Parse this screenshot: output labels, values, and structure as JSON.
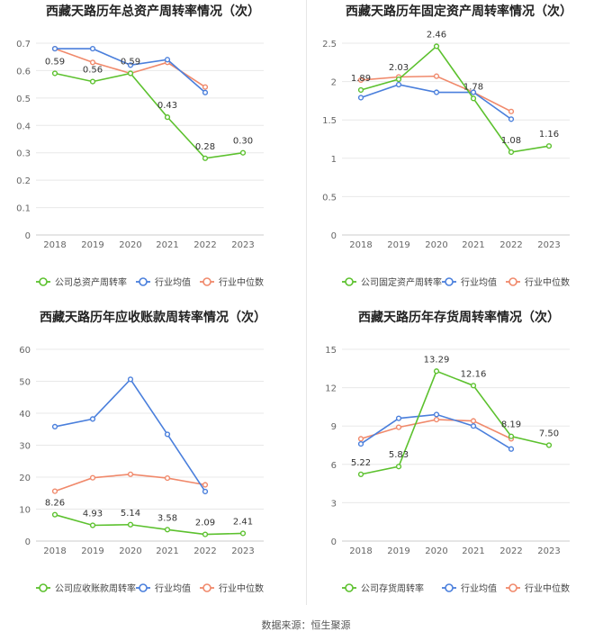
{
  "footer": "数据来源：恒生聚源",
  "legend_labels": {
    "industry_avg": "行业均值",
    "industry_median": "行业中位数"
  },
  "colors": {
    "company": "#5cc12e",
    "industry_avg": "#4a7fdc",
    "industry_median": "#f0896b",
    "grid": "#e8e8e8",
    "axis_text": "#666666"
  },
  "chart_data": [
    {
      "type": "line",
      "title": "西藏天路历年总资产周转率情况（次）",
      "categories": [
        "2018",
        "2019",
        "2020",
        "2021",
        "2022",
        "2023"
      ],
      "ylim": [
        0,
        0.7
      ],
      "yticks": [
        0,
        0.1,
        0.2,
        0.3,
        0.4,
        0.5,
        0.6,
        0.7
      ],
      "ytick_labels": [
        "0",
        "0.1",
        "0.2",
        "0.3",
        "0.4",
        "0.5",
        "0.6",
        "0.7"
      ],
      "series": [
        {
          "name": "公司总资产周转率",
          "role": "company",
          "values": [
            0.59,
            0.56,
            0.59,
            0.43,
            0.28,
            0.3
          ],
          "labels": [
            "0.59",
            "0.56",
            "0.59",
            "0.43",
            "0.28",
            "0.30"
          ]
        },
        {
          "name": "行业均值",
          "role": "industry_avg",
          "values": [
            0.68,
            0.68,
            0.62,
            0.64,
            0.52,
            null
          ]
        },
        {
          "name": "行业中位数",
          "role": "industry_median",
          "values": [
            0.68,
            0.63,
            0.59,
            0.63,
            0.54,
            null
          ]
        }
      ]
    },
    {
      "type": "line",
      "title": "西藏天路历年固定资产周转率情况（次）",
      "categories": [
        "2018",
        "2019",
        "2020",
        "2021",
        "2022",
        "2023"
      ],
      "ylim": [
        0,
        2.5
      ],
      "yticks": [
        0,
        0.5,
        1,
        1.5,
        2,
        2.5
      ],
      "ytick_labels": [
        "0",
        "0.5",
        "1",
        "1.5",
        "2",
        "2.5"
      ],
      "series": [
        {
          "name": "公司固定资产周转率",
          "role": "company",
          "values": [
            1.89,
            2.03,
            2.46,
            1.78,
            1.08,
            1.16
          ],
          "labels": [
            "1.89",
            "2.03",
            "2.46",
            "1.78",
            "1.08",
            "1.16"
          ]
        },
        {
          "name": "行业均值",
          "role": "industry_avg",
          "values": [
            1.79,
            1.96,
            1.86,
            1.86,
            1.51,
            null
          ]
        },
        {
          "name": "行业中位数",
          "role": "industry_median",
          "values": [
            2.02,
            2.06,
            2.07,
            1.86,
            1.61,
            null
          ]
        }
      ]
    },
    {
      "type": "line",
      "title": "西藏天路历年应收账款周转率情况（次）",
      "categories": [
        "2018",
        "2019",
        "2020",
        "2021",
        "2022",
        "2023"
      ],
      "ylim": [
        0,
        60
      ],
      "yticks": [
        0,
        10,
        20,
        30,
        40,
        50,
        60
      ],
      "ytick_labels": [
        "0",
        "10",
        "20",
        "30",
        "40",
        "50",
        "60"
      ],
      "series": [
        {
          "name": "公司应收账款周转率",
          "role": "company",
          "values": [
            8.26,
            4.93,
            5.14,
            3.58,
            2.09,
            2.41
          ],
          "labels": [
            "8.26",
            "4.93",
            "5.14",
            "3.58",
            "2.09",
            "2.41"
          ]
        },
        {
          "name": "行业均值",
          "role": "industry_avg",
          "values": [
            35.8,
            38.2,
            50.6,
            33.4,
            15.5,
            null
          ]
        },
        {
          "name": "行业中位数",
          "role": "industry_median",
          "values": [
            15.6,
            19.8,
            20.9,
            19.7,
            17.6,
            null
          ]
        }
      ]
    },
    {
      "type": "line",
      "title": "西藏天路历年存货周转率情况（次）",
      "categories": [
        "2018",
        "2019",
        "2020",
        "2021",
        "2022",
        "2023"
      ],
      "ylim": [
        0,
        15
      ],
      "yticks": [
        0,
        3,
        6,
        9,
        12,
        15
      ],
      "ytick_labels": [
        "0",
        "3",
        "6",
        "9",
        "12",
        "15"
      ],
      "series": [
        {
          "name": "公司存货周转率",
          "role": "company",
          "values": [
            5.22,
            5.83,
            13.29,
            12.16,
            8.19,
            7.5
          ],
          "labels": [
            "5.22",
            "5.83",
            "13.29",
            "12.16",
            "8.19",
            "7.50"
          ]
        },
        {
          "name": "行业均值",
          "role": "industry_avg",
          "values": [
            7.6,
            9.6,
            9.9,
            9.0,
            7.2,
            null
          ]
        },
        {
          "name": "行业中位数",
          "role": "industry_median",
          "values": [
            8.0,
            8.9,
            9.5,
            9.4,
            8.0,
            null
          ]
        }
      ]
    }
  ]
}
